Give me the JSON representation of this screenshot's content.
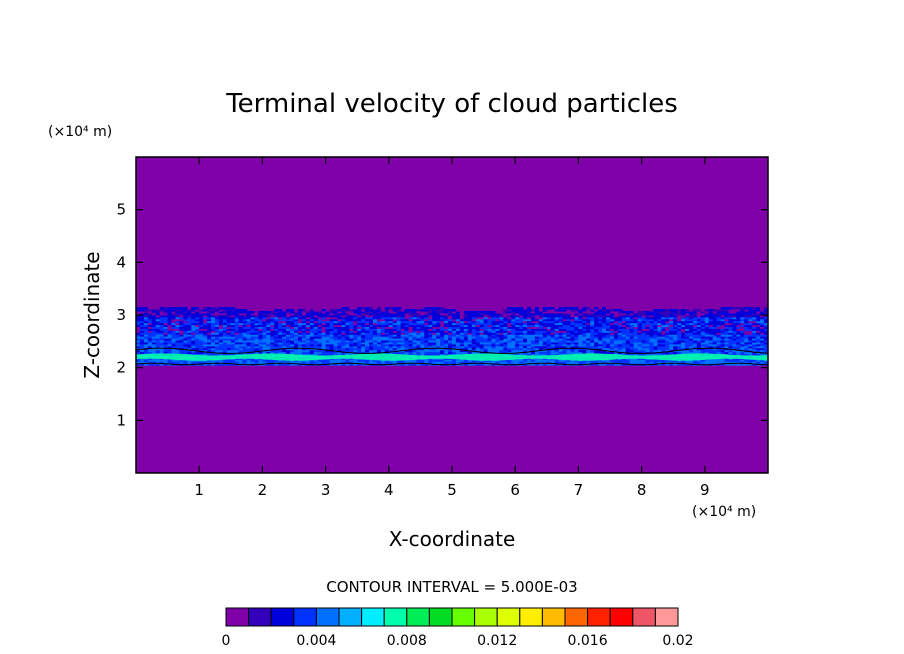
{
  "chart_data": {
    "type": "heatmap",
    "title": "Terminal velocity of cloud particles",
    "xlabel": "X-coordinate",
    "ylabel": "Z-coordinate",
    "x_unit": "(×10⁴ m)",
    "y_unit": "(×10⁴ m)",
    "xlim": [
      0,
      10
    ],
    "ylim": [
      0,
      6
    ],
    "x_ticks": [
      "1",
      "2",
      "3",
      "4",
      "5",
      "6",
      "7",
      "8",
      "9"
    ],
    "y_ticks": [
      "1",
      "2",
      "3",
      "4",
      "5"
    ],
    "grid": false,
    "contour_interval_text": "CONTOUR INTERVAL = 5.000E-03",
    "colorbar": {
      "min": 0,
      "max": 0.02,
      "tick_labels": [
        "0",
        "0.004",
        "0.008",
        "0.012",
        "0.016",
        "0.02"
      ],
      "colors": [
        "#7f00a8",
        "#3300bb",
        "#0000dd",
        "#0033ff",
        "#0070ff",
        "#00b0ff",
        "#00eeff",
        "#00ffaa",
        "#00ee55",
        "#00dd22",
        "#66ff00",
        "#aaff00",
        "#ddff00",
        "#ffee00",
        "#ffbb00",
        "#ff6600",
        "#ff2200",
        "#ff0000",
        "#ee5566",
        "#ff9999"
      ]
    },
    "background_value": 0,
    "cloud_layer": {
      "z_bottom": 2.05,
      "z_top": 3.15,
      "dominant_values": [
        0.001,
        0.002,
        0.003,
        0.004
      ],
      "peak_band_z": 2.2,
      "peak_band_value": 0.007
    }
  }
}
